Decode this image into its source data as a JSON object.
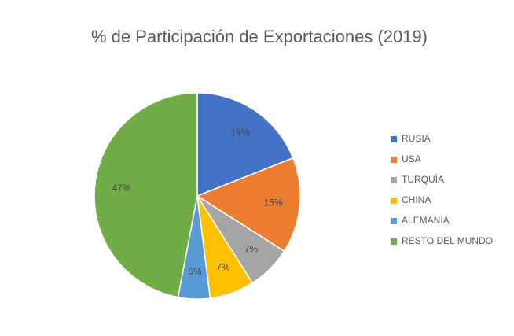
{
  "chart_data": {
    "type": "pie",
    "title": "% de Participación de Exportaciones (2019)",
    "categories": [
      "RUSIA",
      "USA",
      "TURQUÍA",
      "CHINA",
      "ALEMANIA",
      "RESTO DEL MUNDO"
    ],
    "values": [
      19,
      15,
      7,
      7,
      5,
      47
    ],
    "value_labels": [
      "19%",
      "15%",
      "7%",
      "7%",
      "5%",
      "47%"
    ],
    "colors": [
      "#4472c4",
      "#ed7d31",
      "#a5a5a5",
      "#ffc000",
      "#5b9bd5",
      "#70ad47"
    ],
    "legend": "right"
  }
}
